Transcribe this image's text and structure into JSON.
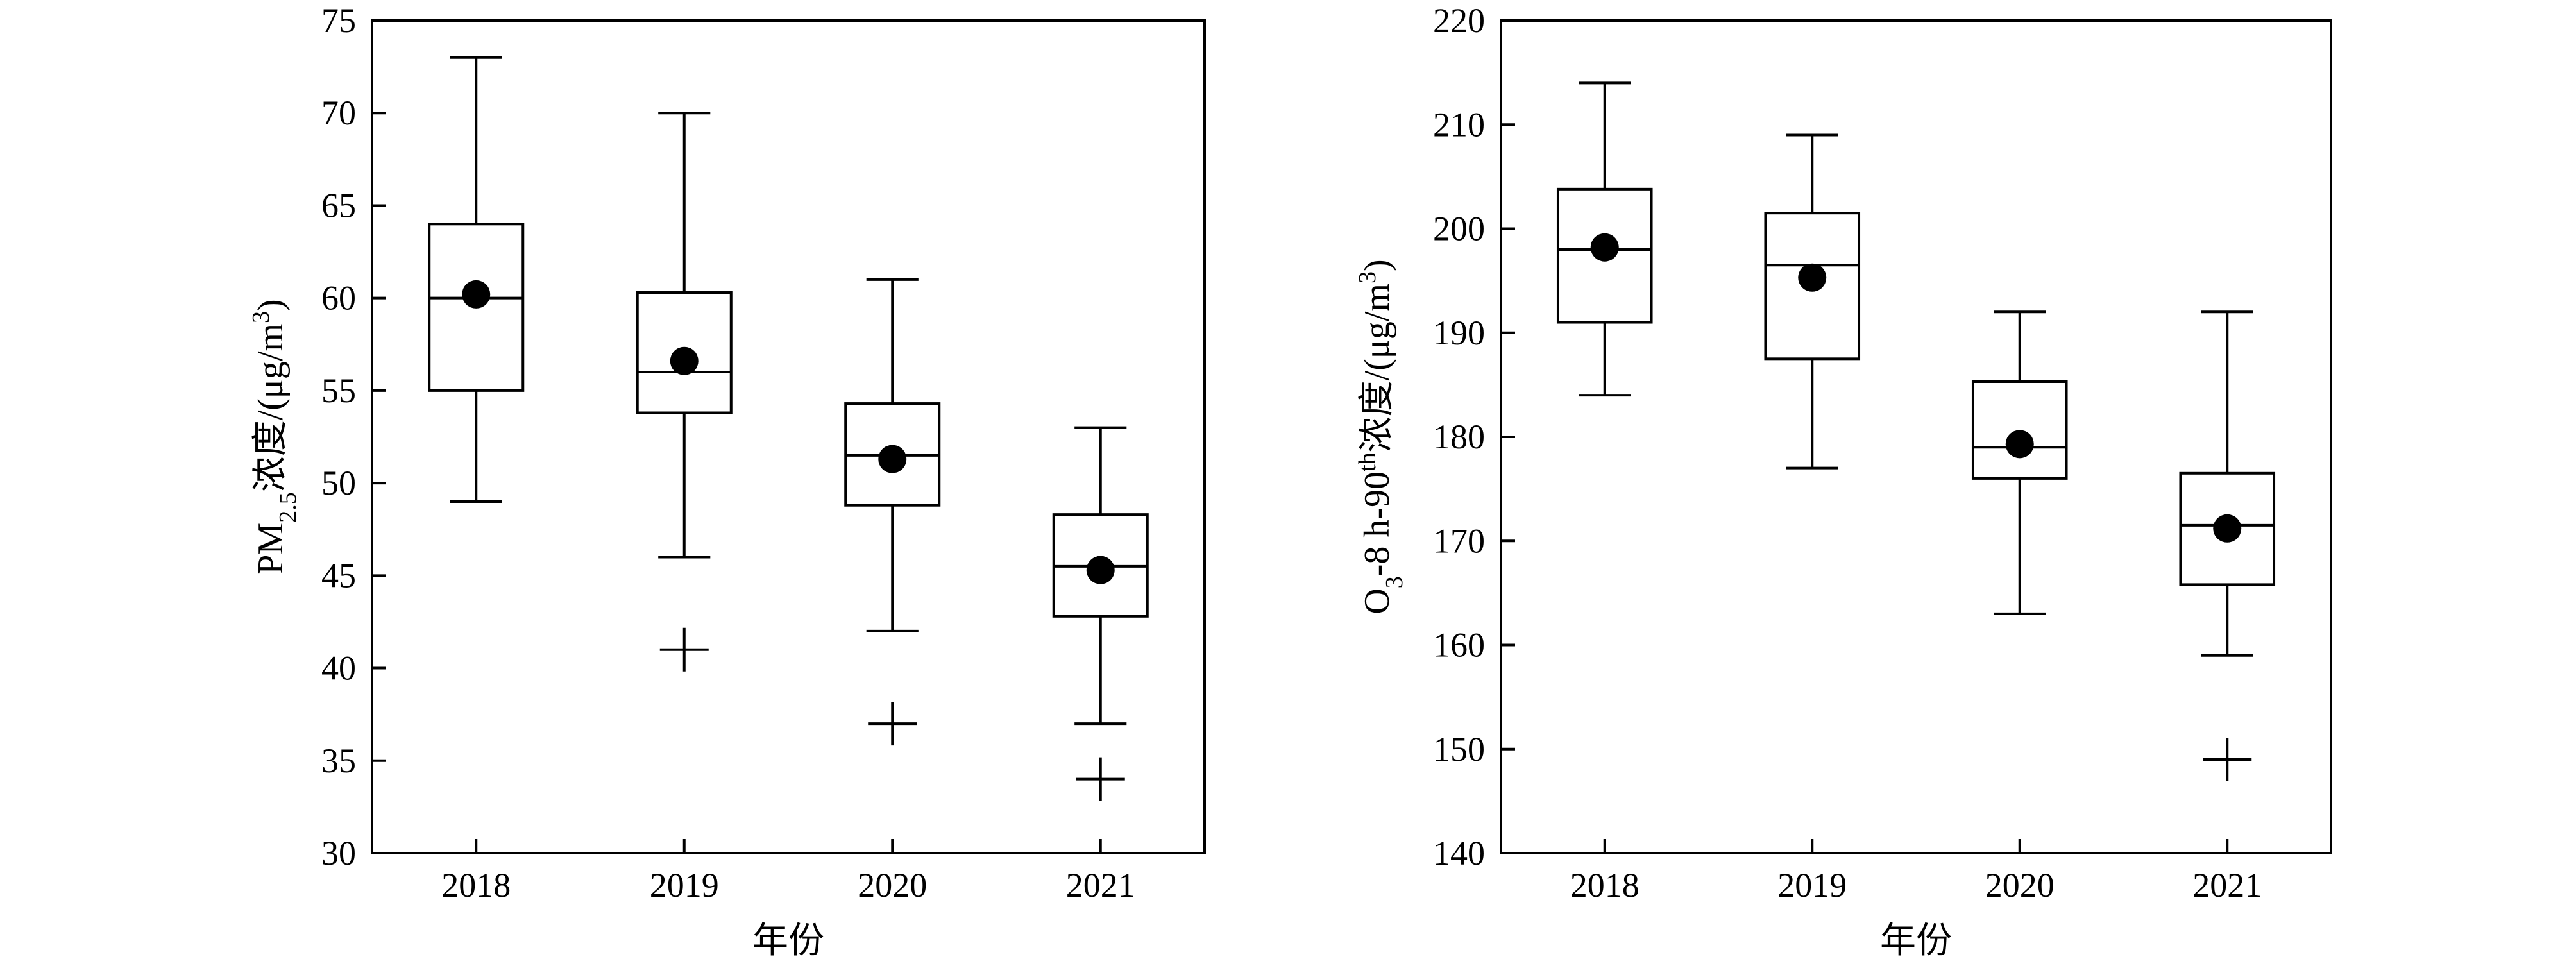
{
  "chart_data": [
    {
      "type": "box",
      "xlabel": "年份",
      "ylabel": "PM2.5浓度/(μg/m3)",
      "ylabel_parts": {
        "main": "PM",
        "sub": "2.5",
        "rest": "浓度/(μg/m",
        "sup": "3",
        "close": ")"
      },
      "ylim": [
        30,
        75
      ],
      "yticks": [
        30,
        35,
        40,
        45,
        50,
        55,
        60,
        65,
        70,
        75
      ],
      "categories": [
        "2018",
        "2019",
        "2020",
        "2021"
      ],
      "boxes": [
        {
          "category": "2018",
          "whisker_low": 49,
          "q1": 55,
          "median": 60,
          "q3": 64,
          "whisker_high": 73,
          "mean": 60.2,
          "outliers": []
        },
        {
          "category": "2019",
          "whisker_low": 46,
          "q1": 53.8,
          "median": 56,
          "q3": 60.3,
          "whisker_high": 70,
          "mean": 56.6,
          "outliers": [
            41
          ]
        },
        {
          "category": "2020",
          "whisker_low": 42,
          "q1": 48.8,
          "median": 51.5,
          "q3": 54.3,
          "whisker_high": 61,
          "mean": 51.3,
          "outliers": [
            37
          ]
        },
        {
          "category": "2021",
          "whisker_low": 37,
          "q1": 42.8,
          "median": 45.5,
          "q3": 48.3,
          "whisker_high": 53,
          "mean": 45.3,
          "outliers": [
            34
          ]
        }
      ],
      "grid": false,
      "legend": "none"
    },
    {
      "type": "box",
      "xlabel": "年份",
      "ylabel": "O3-8 h-90th浓度/(μg/m3)",
      "ylabel_parts": {
        "main": "O",
        "sub": "3",
        "mid": "-8 h-90",
        "sup1": "th",
        "rest": "浓度/(μg/m",
        "sup": "3",
        "close": ")"
      },
      "ylim": [
        140,
        220
      ],
      "yticks": [
        140,
        150,
        160,
        170,
        180,
        190,
        200,
        210,
        220
      ],
      "categories": [
        "2018",
        "2019",
        "2020",
        "2021"
      ],
      "boxes": [
        {
          "category": "2018",
          "whisker_low": 184,
          "q1": 191,
          "median": 198,
          "q3": 203.8,
          "whisker_high": 214,
          "mean": 198.2,
          "outliers": []
        },
        {
          "category": "2019",
          "whisker_low": 177,
          "q1": 187.5,
          "median": 196.5,
          "q3": 201.5,
          "whisker_high": 209,
          "mean": 195.3,
          "outliers": []
        },
        {
          "category": "2020",
          "whisker_low": 163,
          "q1": 176,
          "median": 179,
          "q3": 185.3,
          "whisker_high": 192,
          "mean": 179.3,
          "outliers": []
        },
        {
          "category": "2021",
          "whisker_low": 159,
          "q1": 165.8,
          "median": 171.5,
          "q3": 176.5,
          "whisker_high": 192,
          "mean": 171.2,
          "outliers": [
            149
          ]
        }
      ],
      "grid": false,
      "legend": "none"
    }
  ]
}
